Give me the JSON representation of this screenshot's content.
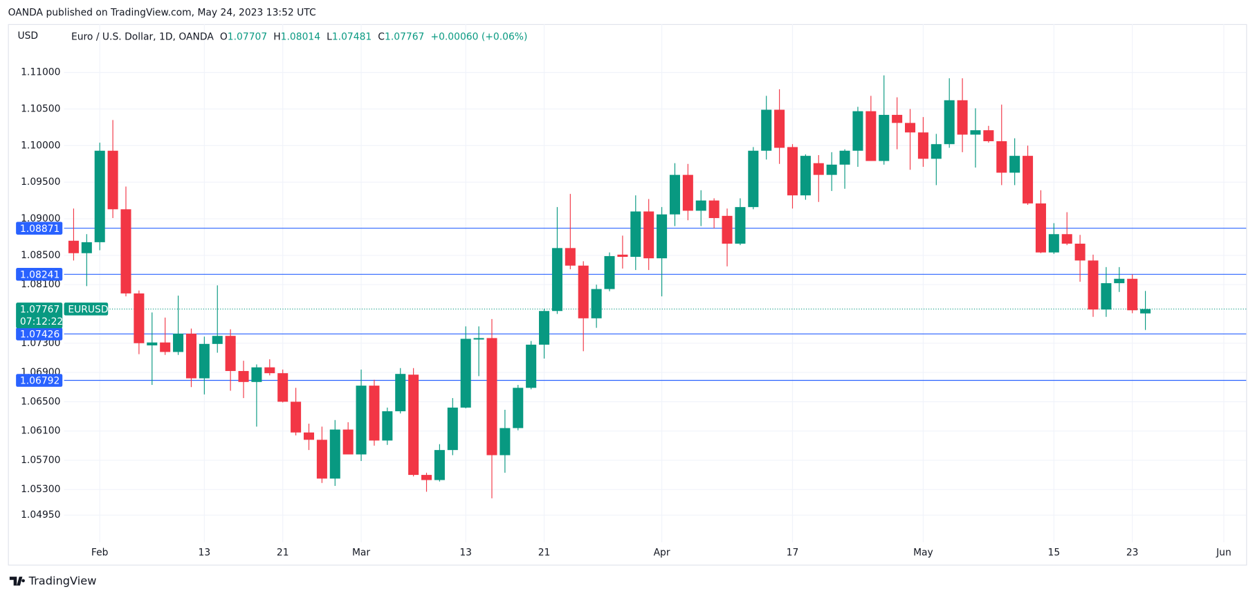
{
  "chart_data": {
    "type": "candlestick",
    "header": "OANDA published on TradingView.com, May 24, 2023 13:52 UTC",
    "currency": "USD",
    "symbol_title": "Euro / U.S. Dollar, 1D, OANDA",
    "ohlc_letters": [
      "O",
      "H",
      "L",
      "C"
    ],
    "change_label": "+0.00060 (+0.06%)",
    "categories": [
      null,
      null,
      "Feb",
      null,
      null,
      null,
      null,
      null,
      null,
      null,
      "13",
      null,
      null,
      null,
      null,
      null,
      "21",
      null,
      null,
      null,
      null,
      null,
      "Mar",
      null,
      null,
      null,
      null,
      null,
      null,
      null,
      "13",
      null,
      null,
      null,
      null,
      null,
      "21",
      null,
      null,
      null,
      null,
      null,
      null,
      null,
      null,
      "Apr",
      null,
      null,
      null,
      null,
      null,
      null,
      null,
      null,
      null,
      "17",
      null,
      null,
      null,
      null,
      null,
      null,
      null,
      null,
      null,
      "May",
      null,
      null,
      null,
      null,
      null,
      null,
      null,
      null,
      null,
      "15",
      null,
      null,
      null,
      null,
      null,
      "23",
      null,
      null,
      null,
      null,
      null,
      null,
      "Jun"
    ],
    "open": [
      1.087,
      1.0853,
      1.0868,
      1.0993,
      1.0913,
      1.0798,
      1.0727,
      1.0731,
      1.0718,
      1.0743,
      1.0682,
      1.0729,
      1.074,
      1.0692,
      1.0677,
      1.0697,
      1.0689,
      1.065,
      1.0608,
      1.0598,
      1.0545,
      1.0612,
      1.0578,
      1.0672,
      1.0597,
      1.0637,
      1.0687,
      1.055,
      1.0543,
      1.0584,
      1.0642,
      1.0735,
      1.0737,
      1.0577,
      1.0614,
      1.0669,
      1.0728,
      1.0774,
      1.086,
      1.0836,
      1.0764,
      1.0804,
      1.0851,
      1.0848,
      1.091,
      1.0846,
      1.0906,
      1.096,
      1.0911,
      1.0925,
      1.0904,
      1.0866,
      1.0916,
      1.0993,
      1.1049,
      1.0998,
      1.0932,
      1.0976,
      1.096,
      1.0974,
      1.0993,
      1.1047,
      1.0979,
      1.1042,
      1.1031,
      1.1018,
      1.0982,
      1.1002,
      1.1062,
      1.1015,
      1.1021,
      1.1006,
      1.0963,
      1.0986,
      1.0921,
      1.0854,
      1.0879,
      1.0866,
      1.0843,
      1.0776,
      1.0812,
      1.0818,
      1.07707,
      null,
      null,
      null,
      null,
      null,
      null
    ],
    "high": [
      1.0914,
      1.0879,
      1.1004,
      1.1035,
      1.0944,
      1.0802,
      1.0772,
      1.0765,
      1.0795,
      1.075,
      1.0739,
      1.0809,
      1.0749,
      1.0706,
      1.0701,
      1.0708,
      1.0694,
      1.0669,
      1.062,
      1.0616,
      1.0625,
      1.0622,
      1.0694,
      1.068,
      1.0642,
      1.0696,
      1.0696,
      1.0553,
      1.0592,
      1.0655,
      1.0753,
      1.0753,
      1.0763,
      1.0639,
      1.0673,
      1.0733,
      1.0777,
      1.0916,
      1.0934,
      1.0842,
      1.081,
      1.0854,
      1.0877,
      1.0932,
      1.0927,
      1.0916,
      1.0976,
      1.0975,
      1.0939,
      1.0928,
      1.0914,
      1.0928,
      1.0998,
      1.1068,
      1.1077,
      1.1002,
      1.0988,
      1.0987,
      1.0991,
      1.0995,
      1.1053,
      1.1068,
      1.1096,
      1.1066,
      1.105,
      1.1039,
      1.1016,
      1.1092,
      1.1092,
      1.1051,
      1.1027,
      1.1056,
      1.101,
      1.1,
      1.0939,
      1.0894,
      1.0909,
      1.0878,
      1.0851,
      1.0834,
      1.0834,
      1.0824,
      1.08014,
      null,
      null,
      null,
      null,
      null,
      null
    ],
    "low": [
      1.0843,
      1.0808,
      1.0857,
      1.0901,
      1.0794,
      1.0715,
      1.0673,
      1.0714,
      1.0714,
      1.067,
      1.066,
      1.0717,
      1.0665,
      1.0655,
      1.0616,
      1.0686,
      1.0649,
      1.0604,
      1.0584,
      1.0539,
      1.0535,
      1.0578,
      1.0569,
      1.059,
      1.0591,
      1.0634,
      1.0548,
      1.0527,
      1.0541,
      1.0577,
      1.0641,
      1.0685,
      1.0518,
      1.0553,
      1.0611,
      1.0667,
      1.0709,
      1.077,
      1.0831,
      1.0719,
      1.0751,
      1.0801,
      1.0832,
      1.083,
      1.083,
      1.0794,
      1.089,
      1.0898,
      1.089,
      1.0887,
      1.0835,
      1.0864,
      1.0913,
      1.0981,
      1.0975,
      1.0914,
      1.0926,
      1.0923,
      1.0938,
      1.0941,
      1.0971,
      1.0979,
      1.0974,
      1.0995,
      1.0967,
      1.0971,
      1.0946,
      1.0997,
      1.0991,
      1.097,
      1.1004,
      1.0946,
      1.0946,
      1.0919,
      1.0853,
      1.0852,
      1.0864,
      1.0814,
      1.0766,
      1.0766,
      1.08,
      1.0771,
      1.07481,
      null,
      null,
      null,
      null,
      null,
      null
    ],
    "close": [
      1.0853,
      1.0868,
      1.0993,
      1.0913,
      1.0798,
      1.073,
      1.0731,
      1.0718,
      1.0743,
      1.0682,
      1.0729,
      1.074,
      1.0692,
      1.0677,
      1.0697,
      1.0689,
      1.065,
      1.0608,
      1.0598,
      1.0545,
      1.0612,
      1.0578,
      1.0672,
      1.0597,
      1.0637,
      1.0688,
      1.055,
      1.0543,
      1.0584,
      1.0642,
      1.0736,
      1.0737,
      1.0577,
      1.0614,
      1.0669,
      1.0728,
      1.0774,
      1.086,
      1.0836,
      1.0764,
      1.0804,
      1.0849,
      1.0848,
      1.091,
      1.0846,
      1.0906,
      1.096,
      1.0911,
      1.0925,
      1.0901,
      1.0866,
      1.0916,
      1.0993,
      1.1049,
      1.0997,
      1.0932,
      1.0986,
      1.096,
      1.0974,
      1.0993,
      1.1047,
      1.0979,
      1.1042,
      1.1031,
      1.1018,
      1.0982,
      1.1002,
      1.1062,
      1.1015,
      1.1021,
      1.1006,
      1.0963,
      1.0986,
      1.0921,
      1.0854,
      1.0879,
      1.0866,
      1.0843,
      1.0776,
      1.0812,
      1.0818,
      1.0775,
      1.07767,
      null,
      null,
      null,
      null,
      null,
      null
    ],
    "up_color": "#089981",
    "down_color": "#f23645",
    "ylim": [
      1.0458,
      1.1166
    ],
    "yticks": [
      {
        "value": 1.11,
        "label": "1.11000"
      },
      {
        "value": 1.105,
        "label": "1.10500"
      },
      {
        "value": 1.1,
        "label": "1.10000"
      },
      {
        "value": 1.095,
        "label": "1.09500"
      },
      {
        "value": 1.09,
        "label": "1.09000"
      },
      {
        "value": 1.085,
        "label": "1.08500"
      },
      {
        "value": 1.081,
        "label": "1.08100"
      },
      {
        "value": 1.073,
        "label": "1.07300"
      },
      {
        "value": 1.069,
        "label": "1.06900"
      },
      {
        "value": 1.065,
        "label": "1.06500"
      },
      {
        "value": 1.061,
        "label": "1.06100"
      },
      {
        "value": 1.057,
        "label": "1.05700"
      },
      {
        "value": 1.053,
        "label": "1.05300"
      },
      {
        "value": 1.0495,
        "label": "1.04950"
      }
    ],
    "grid": true,
    "hlines": [
      1.08871,
      1.08241,
      1.07426,
      1.06792
    ],
    "hline_color": "#2962ff",
    "last_price_symbol": "EURUSD",
    "countdown": "07:12:22",
    "footer": "TradingView"
  }
}
